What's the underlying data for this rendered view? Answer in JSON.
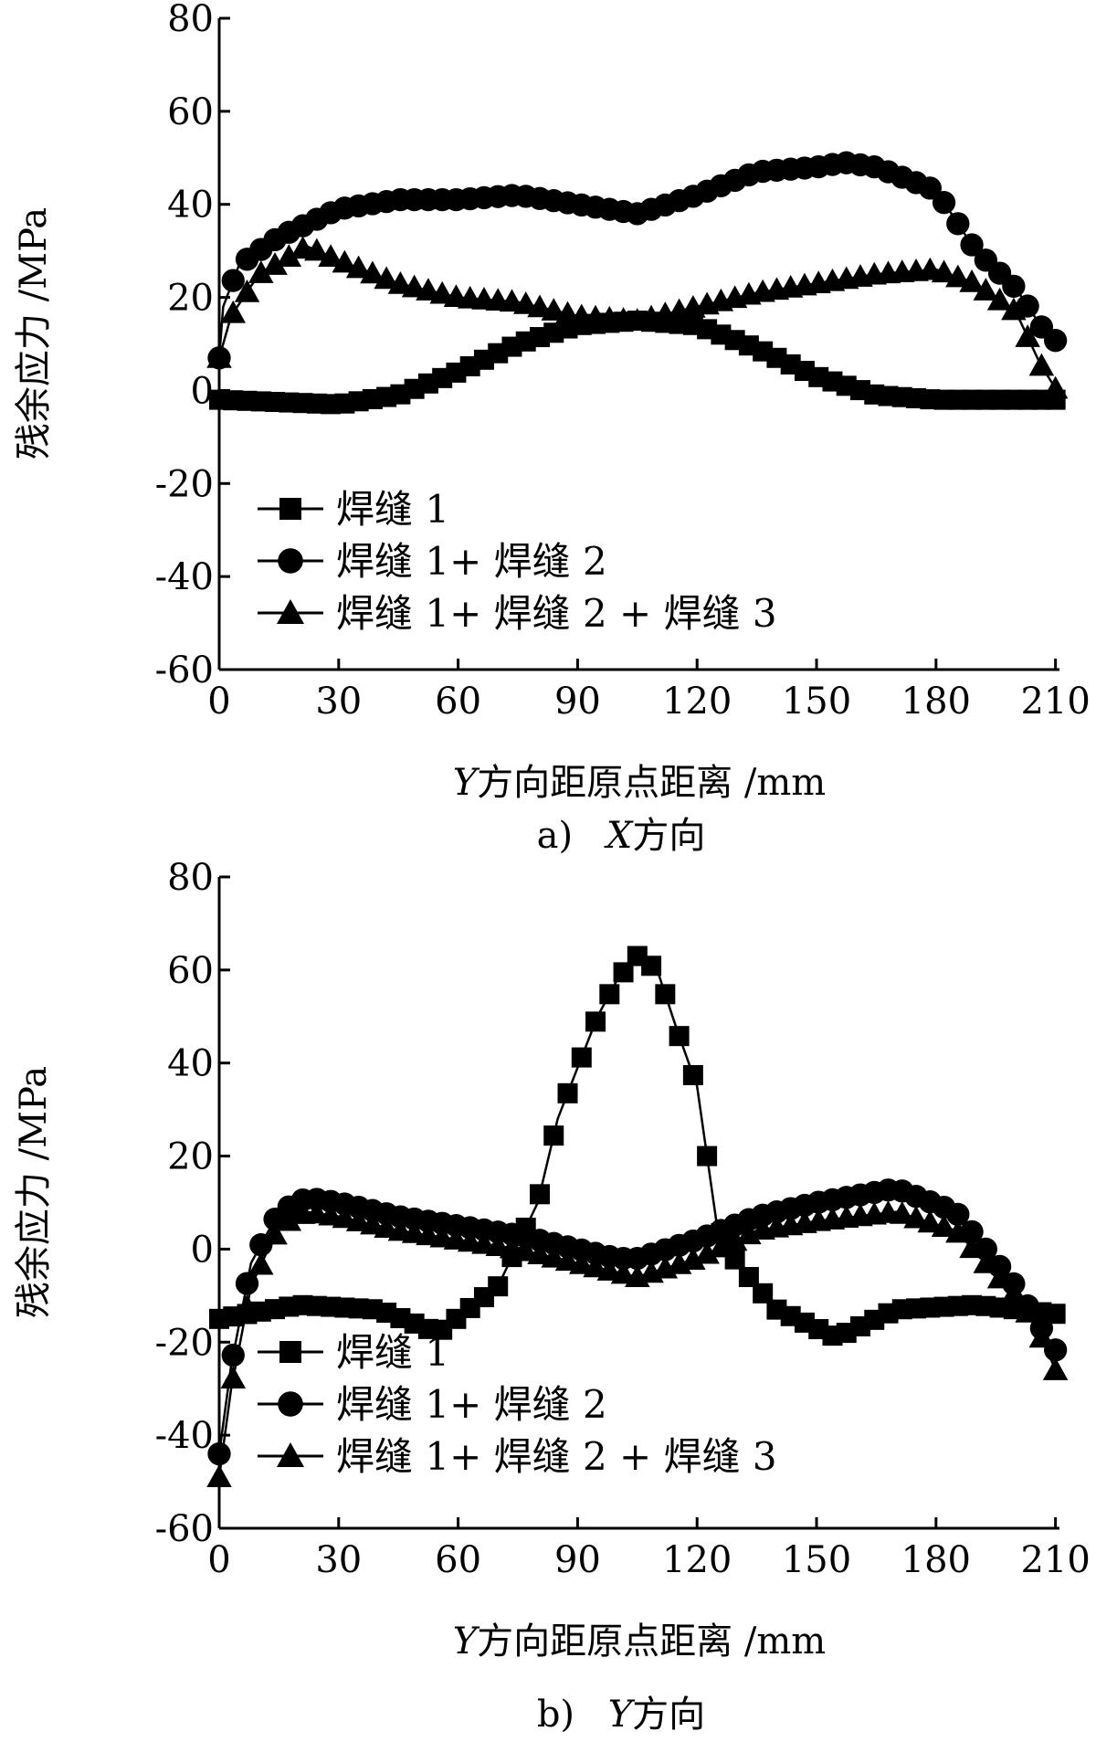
{
  "chart_data": [
    {
      "type": "line",
      "ylabel": "残余应力 /MPa",
      "xlabel": "Y方向距原点距离 /mm",
      "xlabel_var": "Y",
      "xlabel_rest": "方向距原点距离 /mm",
      "caption_prefix": "a)",
      "caption_var": "X",
      "caption_rest": "方向",
      "xlim": [
        0,
        211
      ],
      "ylim": [
        -60,
        80
      ],
      "xticks": [
        "0",
        "30",
        "60",
        "90",
        "120",
        "150",
        "180",
        "210"
      ],
      "yticks": [
        "80",
        "60",
        "40",
        "20",
        "0",
        "-20",
        "-40",
        "-60"
      ],
      "grid": false,
      "legend_position": "bottom-left",
      "series": [
        {
          "name": "焊缝 1",
          "marker": "square",
          "color": "#000000",
          "x": [
            0,
            30,
            45,
            60,
            75,
            90,
            105,
            120,
            135,
            150,
            165,
            180,
            195,
            211
          ],
          "y": [
            -2,
            -3,
            -1,
            4,
            10,
            14,
            15,
            14,
            9,
            3,
            -1,
            -2,
            -2,
            -2
          ]
        },
        {
          "name": "焊缝 1+ 焊缝 2",
          "marker": "circle",
          "color": "#000000",
          "x": [
            0,
            1,
            5,
            15,
            30,
            45,
            60,
            75,
            90,
            105,
            120,
            135,
            150,
            157,
            165,
            180,
            190,
            200,
            207,
            211
          ],
          "y": [
            7,
            18,
            27,
            33,
            39,
            41,
            41,
            42,
            40,
            38,
            42,
            47,
            48,
            49,
            48,
            43,
            30,
            22,
            13,
            10
          ]
        },
        {
          "name": "焊缝 1+ 焊缝 2 + 焊缝 3",
          "marker": "triangle",
          "color": "#000000",
          "x": [
            0,
            3,
            10,
            22,
            30,
            45,
            60,
            75,
            90,
            105,
            120,
            135,
            150,
            165,
            180,
            190,
            200,
            206,
            211
          ],
          "y": [
            7,
            16,
            25,
            31,
            28,
            23,
            20,
            19,
            16,
            15,
            18,
            21,
            23,
            25,
            26,
            23,
            17,
            6,
            -1
          ]
        }
      ]
    },
    {
      "type": "line",
      "ylabel": "残余应力 /MPa",
      "xlabel": "Y方向距原点距离 /mm",
      "xlabel_var": "Y",
      "xlabel_rest": "方向距原点距离 /mm",
      "caption_prefix": "b)",
      "caption_var": "Y",
      "caption_rest": "方向",
      "xlim": [
        0,
        211
      ],
      "ylim": [
        -60,
        80
      ],
      "xticks": [
        "0",
        "30",
        "60",
        "90",
        "120",
        "150",
        "180",
        "210"
      ],
      "yticks": [
        "80",
        "60",
        "40",
        "20",
        "0",
        "-20",
        "-40",
        "-60"
      ],
      "grid": false,
      "legend_position": "bottom-left",
      "series": [
        {
          "name": "焊缝 1",
          "marker": "square",
          "color": "#000000",
          "x": [
            0,
            20,
            40,
            55,
            70,
            80,
            85,
            95,
            100,
            105,
            110,
            115,
            120,
            125,
            130,
            140,
            155,
            170,
            190,
            211
          ],
          "y": [
            -15,
            -12,
            -13,
            -18,
            -8,
            10,
            28,
            50,
            58,
            63,
            60,
            47,
            35,
            5,
            -3,
            -13,
            -19,
            -13,
            -12,
            -14
          ]
        },
        {
          "name": "焊缝 1+ 焊缝 2",
          "marker": "circle",
          "color": "#000000",
          "x": [
            0,
            3,
            8,
            15,
            22,
            30,
            45,
            60,
            75,
            90,
            100,
            105,
            120,
            135,
            150,
            170,
            185,
            200,
            205,
            211
          ],
          "y": [
            -44,
            -25,
            -3,
            8,
            11,
            10,
            7,
            5,
            3,
            0,
            -2,
            -2,
            2,
            7,
            10,
            13,
            8,
            -8,
            -15,
            -23
          ]
        },
        {
          "name": "焊缝 1+ 焊缝 2 + 焊缝 3",
          "marker": "triangle",
          "color": "#000000",
          "x": [
            0,
            3,
            8,
            15,
            22,
            30,
            45,
            60,
            75,
            90,
            100,
            105,
            120,
            135,
            150,
            170,
            185,
            200,
            205,
            211
          ],
          "y": [
            -49,
            -30,
            -8,
            5,
            8,
            7,
            4,
            2,
            0,
            -3,
            -5,
            -6,
            -2,
            4,
            6,
            8,
            4,
            -10,
            -16,
            -28
          ]
        }
      ]
    }
  ]
}
